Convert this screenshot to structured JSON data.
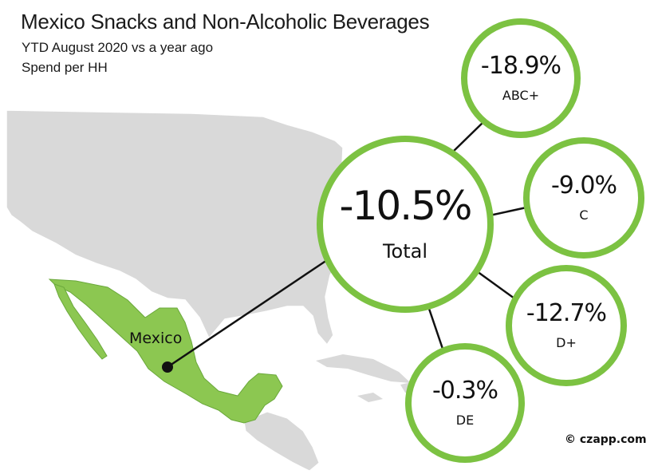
{
  "header": {
    "title": "Mexico Snacks and Non-Alcoholic Beverages",
    "subtitle_line1": "YTD August 2020 vs a year ago",
    "subtitle_line2": "Spend per HH"
  },
  "map": {
    "country_label": "Mexico",
    "highlight_color": "#8cc751",
    "land_color": "#d9d9d9",
    "marker": "location-dot"
  },
  "bubbles": {
    "total": {
      "value": "-10.5%",
      "label": "Total"
    },
    "abc_plus": {
      "value": "-18.9%",
      "label": "ABC+"
    },
    "c": {
      "value": "-9.0%",
      "label": "C"
    },
    "d_plus": {
      "value": "-12.7%",
      "label": "D+"
    },
    "de": {
      "value": "-0.3%",
      "label": "DE"
    }
  },
  "colors": {
    "ring": "#7cc242",
    "text": "#111111"
  },
  "credit": "© czapp.com"
}
